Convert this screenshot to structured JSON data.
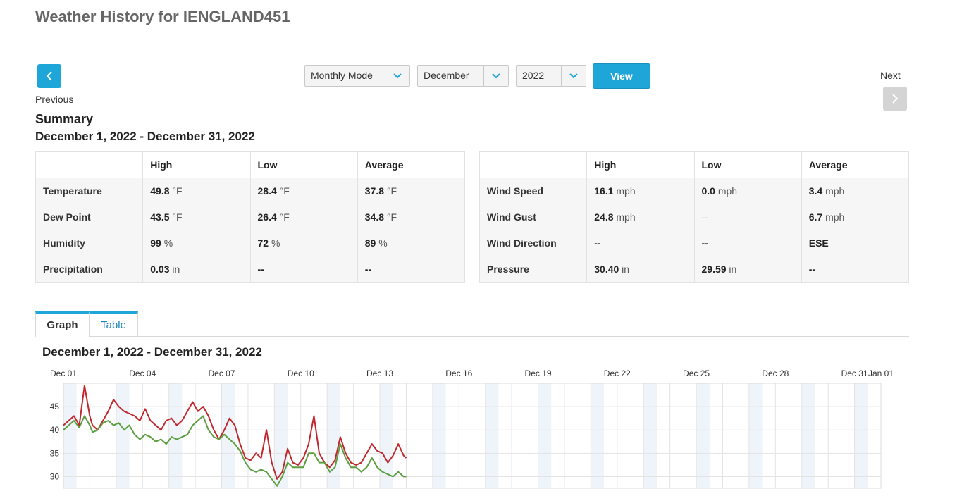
{
  "page": {
    "title": "Weather History for IENGLAND451"
  },
  "nav": {
    "previous_label": "Previous",
    "next_label": "Next"
  },
  "controls": {
    "mode": "Monthly Mode",
    "month": "December",
    "year": "2022",
    "view_label": "View"
  },
  "summary": {
    "title": "Summary",
    "range": "December 1, 2022 - December 31, 2022",
    "headers": [
      "",
      "High",
      "Low",
      "Average"
    ],
    "left_rows": [
      {
        "name": "Temperature",
        "high": "49.8",
        "high_unit": " °F",
        "low": "28.4",
        "low_unit": " °F",
        "avg": "37.8",
        "avg_unit": " °F"
      },
      {
        "name": "Dew Point",
        "high": "43.5",
        "high_unit": " °F",
        "low": "26.4",
        "low_unit": " °F",
        "avg": "34.8",
        "avg_unit": " °F"
      },
      {
        "name": "Humidity",
        "high": "99",
        "high_unit": " %",
        "low": "72",
        "low_unit": " %",
        "avg": "89",
        "avg_unit": " %"
      },
      {
        "name": "Precipitation",
        "high": "0.03",
        "high_unit": " in",
        "low": "--",
        "low_unit": "",
        "avg": "--",
        "avg_unit": ""
      }
    ],
    "right_rows": [
      {
        "name": "Wind Speed",
        "high": "16.1",
        "high_unit": " mph",
        "low": "0.0",
        "low_unit": " mph",
        "avg": "3.4",
        "avg_unit": " mph"
      },
      {
        "name": "Wind Gust",
        "high": "24.8",
        "high_unit": " mph",
        "low": "--",
        "low_unit": "",
        "avg": "6.7",
        "avg_unit": " mph"
      },
      {
        "name": "Wind Direction",
        "high": "--",
        "high_unit": "",
        "low": "--",
        "low_unit": "",
        "avg": "ESE",
        "avg_unit": ""
      },
      {
        "name": "Pressure",
        "high": "30.40",
        "high_unit": " in",
        "low": "29.59",
        "low_unit": " in",
        "avg": "--",
        "avg_unit": ""
      }
    ]
  },
  "tabs": [
    {
      "label": "Graph",
      "active": true
    },
    {
      "label": "Table",
      "active": false
    }
  ],
  "graph": {
    "title": "December 1, 2022 - December 31, 2022"
  },
  "chart_data": {
    "type": "line",
    "title": "",
    "xlabel": "",
    "ylabel": "",
    "x_tick_labels": [
      "Dec 01",
      "Dec 04",
      "Dec 07",
      "Dec 10",
      "Dec 13",
      "Dec 16",
      "Dec 19",
      "Dec 22",
      "Dec 25",
      "Dec 28",
      "Dec 31",
      "Jan 01"
    ],
    "x_tick_days": [
      1,
      4,
      7,
      10,
      13,
      16,
      19,
      22,
      25,
      28,
      31,
      32
    ],
    "xlim_days": [
      1,
      32
    ],
    "y_tick_labels": [
      "30",
      "35",
      "40",
      "45"
    ],
    "y_ticks": [
      30,
      35,
      40,
      45
    ],
    "ylim": [
      27.5,
      50
    ],
    "grid": true,
    "colors": {
      "temperature": "#c0282d",
      "dew_point": "#5a9e3f",
      "band": "#eef4f9",
      "grid": "#e3e3e3"
    },
    "series": [
      {
        "key": "temperature",
        "x_days": [
          1.0,
          1.2,
          1.4,
          1.6,
          1.8,
          2.0,
          2.1,
          2.3,
          2.5,
          2.7,
          2.9,
          3.1,
          3.3,
          3.5,
          3.7,
          3.9,
          4.1,
          4.3,
          4.5,
          4.7,
          4.9,
          5.1,
          5.3,
          5.5,
          5.7,
          5.9,
          6.1,
          6.3,
          6.5,
          6.7,
          6.9,
          7.1,
          7.3,
          7.5,
          7.7,
          7.9,
          8.1,
          8.3,
          8.5,
          8.7,
          8.9,
          9.1,
          9.3,
          9.5,
          9.7,
          9.9,
          10.1,
          10.3,
          10.5,
          10.7,
          10.9,
          11.1,
          11.3,
          11.5,
          11.7,
          11.9,
          12.1,
          12.3,
          12.5,
          12.7,
          12.9,
          13.1,
          13.3,
          13.5,
          13.7,
          13.9,
          14.0
        ],
        "values": [
          41.0,
          42.0,
          43.0,
          41.0,
          49.5,
          43.0,
          41.0,
          40.0,
          42.0,
          44.0,
          46.5,
          45.0,
          44.0,
          43.5,
          43.0,
          42.0,
          44.5,
          42.0,
          41.0,
          40.0,
          42.0,
          42.5,
          41.0,
          42.0,
          44.0,
          46.0,
          44.0,
          45.0,
          43.0,
          40.0,
          38.0,
          40.0,
          42.5,
          41.0,
          37.0,
          34.0,
          33.5,
          35.0,
          34.0,
          40.0,
          33.0,
          29.5,
          31.0,
          36.0,
          33.0,
          32.5,
          34.0,
          37.0,
          43.0,
          35.0,
          33.0,
          32.0,
          33.5,
          38.5,
          35.0,
          33.0,
          32.5,
          33.0,
          35.0,
          37.0,
          35.5,
          35.0,
          33.0,
          34.5,
          37.0,
          34.5,
          34.0
        ]
      },
      {
        "key": "dew_point",
        "x_days": [
          1.0,
          1.2,
          1.4,
          1.6,
          1.8,
          2.0,
          2.1,
          2.3,
          2.5,
          2.7,
          2.9,
          3.1,
          3.3,
          3.5,
          3.7,
          3.9,
          4.1,
          4.3,
          4.5,
          4.7,
          4.9,
          5.1,
          5.3,
          5.5,
          5.7,
          5.9,
          6.1,
          6.3,
          6.5,
          6.7,
          6.9,
          7.1,
          7.3,
          7.5,
          7.7,
          7.9,
          8.1,
          8.3,
          8.5,
          8.7,
          8.9,
          9.1,
          9.3,
          9.5,
          9.7,
          9.9,
          10.1,
          10.3,
          10.5,
          10.7,
          10.9,
          11.1,
          11.3,
          11.5,
          11.7,
          11.9,
          12.1,
          12.3,
          12.5,
          12.7,
          12.9,
          13.1,
          13.3,
          13.5,
          13.7,
          13.9,
          14.0
        ],
        "values": [
          40.0,
          41.0,
          42.0,
          40.5,
          43.0,
          41.0,
          39.5,
          40.0,
          41.5,
          42.0,
          41.0,
          41.5,
          40.0,
          41.0,
          39.0,
          38.0,
          39.0,
          38.5,
          37.5,
          38.0,
          37.0,
          38.5,
          38.0,
          38.5,
          39.0,
          41.0,
          42.0,
          43.0,
          40.0,
          38.5,
          38.0,
          39.0,
          38.0,
          37.0,
          35.5,
          33.0,
          31.5,
          31.0,
          31.5,
          31.0,
          29.5,
          28.0,
          30.0,
          33.0,
          32.0,
          32.0,
          32.0,
          35.0,
          35.0,
          33.0,
          33.0,
          31.0,
          32.0,
          37.0,
          34.0,
          32.0,
          32.0,
          31.0,
          32.0,
          34.0,
          32.0,
          31.0,
          30.5,
          30.0,
          31.0,
          30.0,
          30.0
        ]
      }
    ]
  }
}
